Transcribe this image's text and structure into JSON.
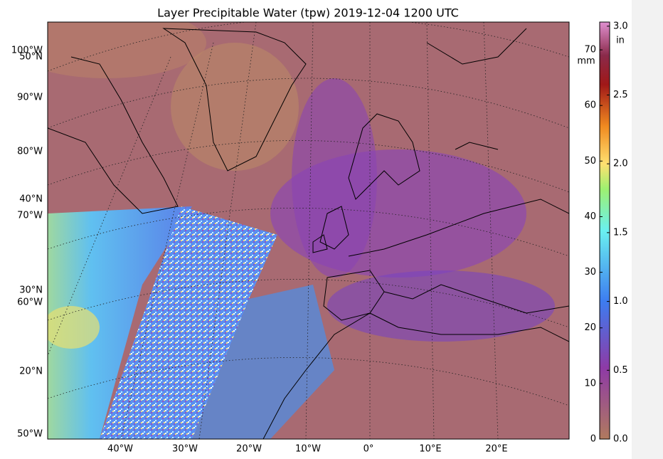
{
  "title": "Layer Precipitable Water (tpw)  2019-12-04 1200 UTC",
  "map": {
    "left_labels": [
      "100°W",
      "50°N",
      "90°W",
      "80°W",
      "40°N",
      "70°W",
      "30°N",
      "60°W",
      "20°N",
      "50°W"
    ],
    "bottom_labels": [
      "40°W",
      "30°W",
      "20°W",
      "10°W",
      "0°",
      "10°E",
      "20°E"
    ]
  },
  "colorbar": {
    "left_units": "mm",
    "left_lim": [
      0,
      75
    ],
    "left_ticks": [
      0,
      10,
      20,
      30,
      40,
      50,
      60,
      70
    ],
    "right_units": "in",
    "right_lim": [
      0,
      3.03
    ],
    "right_ticks": [
      {
        "value": 0,
        "label": "0.0"
      },
      0.5,
      {
        "value": 1,
        "label": "1.0"
      },
      1.5,
      {
        "value": 2,
        "label": "2.0"
      },
      2.5,
      {
        "value": 3,
        "label": "3.0"
      }
    ]
  }
}
